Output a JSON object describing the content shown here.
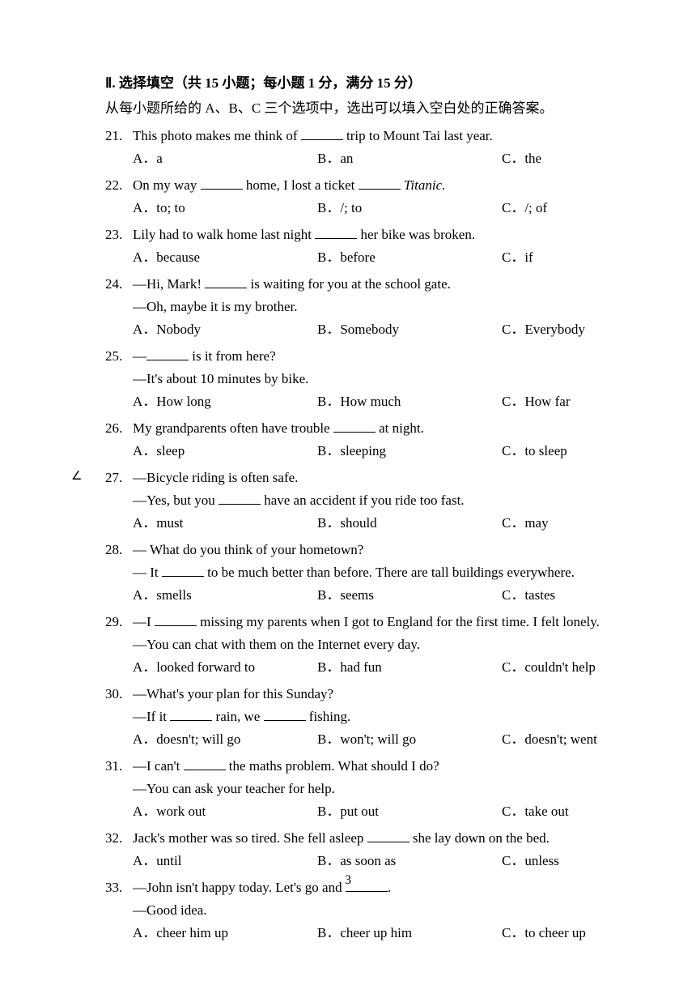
{
  "header": "Ⅱ. 选择填空（共 15 小题；每小题 1 分，满分 15 分）",
  "instructions": "从每小题所给的 A、B、C 三个选项中，选出可以填入空白处的正确答案。",
  "pageNumber": "3",
  "marginMark": "∠",
  "questions": [
    {
      "num": "21.",
      "text": "This photo makes me think of ______ trip to Mount Tai last year.",
      "optA": "A．a",
      "optB": "B．an",
      "optC": "C．the"
    },
    {
      "num": "22.",
      "text": "On my way ______ home, I lost a ticket ______ ",
      "italic": "Titanic.",
      "optA": "A．to; to",
      "optB": "B．/; to",
      "optC": "C．/; of"
    },
    {
      "num": "23.",
      "text": "Lily had to walk home last night ______ her bike was broken.",
      "optA": "A．because",
      "optB": "B．before",
      "optC": "C．if"
    },
    {
      "num": "24.",
      "text": "—Hi, Mark! ______ is waiting for you at the school gate.",
      "sub": "—Oh, maybe it is my brother.",
      "optA": "A．Nobody",
      "optB": "B．Somebody",
      "optC": "C．Everybody"
    },
    {
      "num": "25.",
      "text": "—______ is it from here?",
      "sub": "—It's about 10 minutes by bike.",
      "optA": "A．How long",
      "optB": "B．How much",
      "optC": "C．How far"
    },
    {
      "num": "26.",
      "text": "My grandparents often have trouble ______ at night.",
      "optA": "A．sleep",
      "optB": "B．sleeping",
      "optC": "C．to sleep"
    },
    {
      "num": "27.",
      "text": "—Bicycle riding is often safe.",
      "sub": "—Yes, but you ______ have an accident if you ride too fast.",
      "optA": "A．must",
      "optB": "B．should",
      "optC": "C．may",
      "hasMark": true
    },
    {
      "num": "28.",
      "text": "— What do you think of your hometown?",
      "sub": "— It ______ to be much better than before. There are tall buildings everywhere.",
      "optA": "A．smells",
      "optB": "B．seems",
      "optC": "C．tastes"
    },
    {
      "num": "29.",
      "text": "—I ______ missing my parents when I got to England for the first time. I felt lonely.",
      "sub": "—You can chat with them on the Internet every day.",
      "optA": "A．looked forward to",
      "optB": "B．had fun",
      "optC": "C．couldn't help"
    },
    {
      "num": "30.",
      "text": "—What's your plan for this Sunday?",
      "sub": "—If it ______ rain, we ______ fishing.",
      "optA": "A．doesn't; will go",
      "optB": "B．won't; will go",
      "optC": "C．doesn't; went"
    },
    {
      "num": "31.",
      "text": "—I can't ______ the maths problem. What should I do?",
      "sub": "—You can ask your teacher for help.",
      "optA": "A．work out",
      "optB": "B．put out",
      "optC": "C．take out"
    },
    {
      "num": "32.",
      "text": "Jack's mother was so tired. She fell asleep ______ she lay down on the bed.",
      "optA": "A．until",
      "optB": "B．as soon as",
      "optC": "C．unless"
    },
    {
      "num": "33.",
      "text": "—John isn't happy today. Let's go and ______.",
      "sub": "—Good idea.",
      "optA": "A．cheer him up",
      "optB": "B．cheer up him",
      "optC": "C．to cheer up"
    }
  ]
}
